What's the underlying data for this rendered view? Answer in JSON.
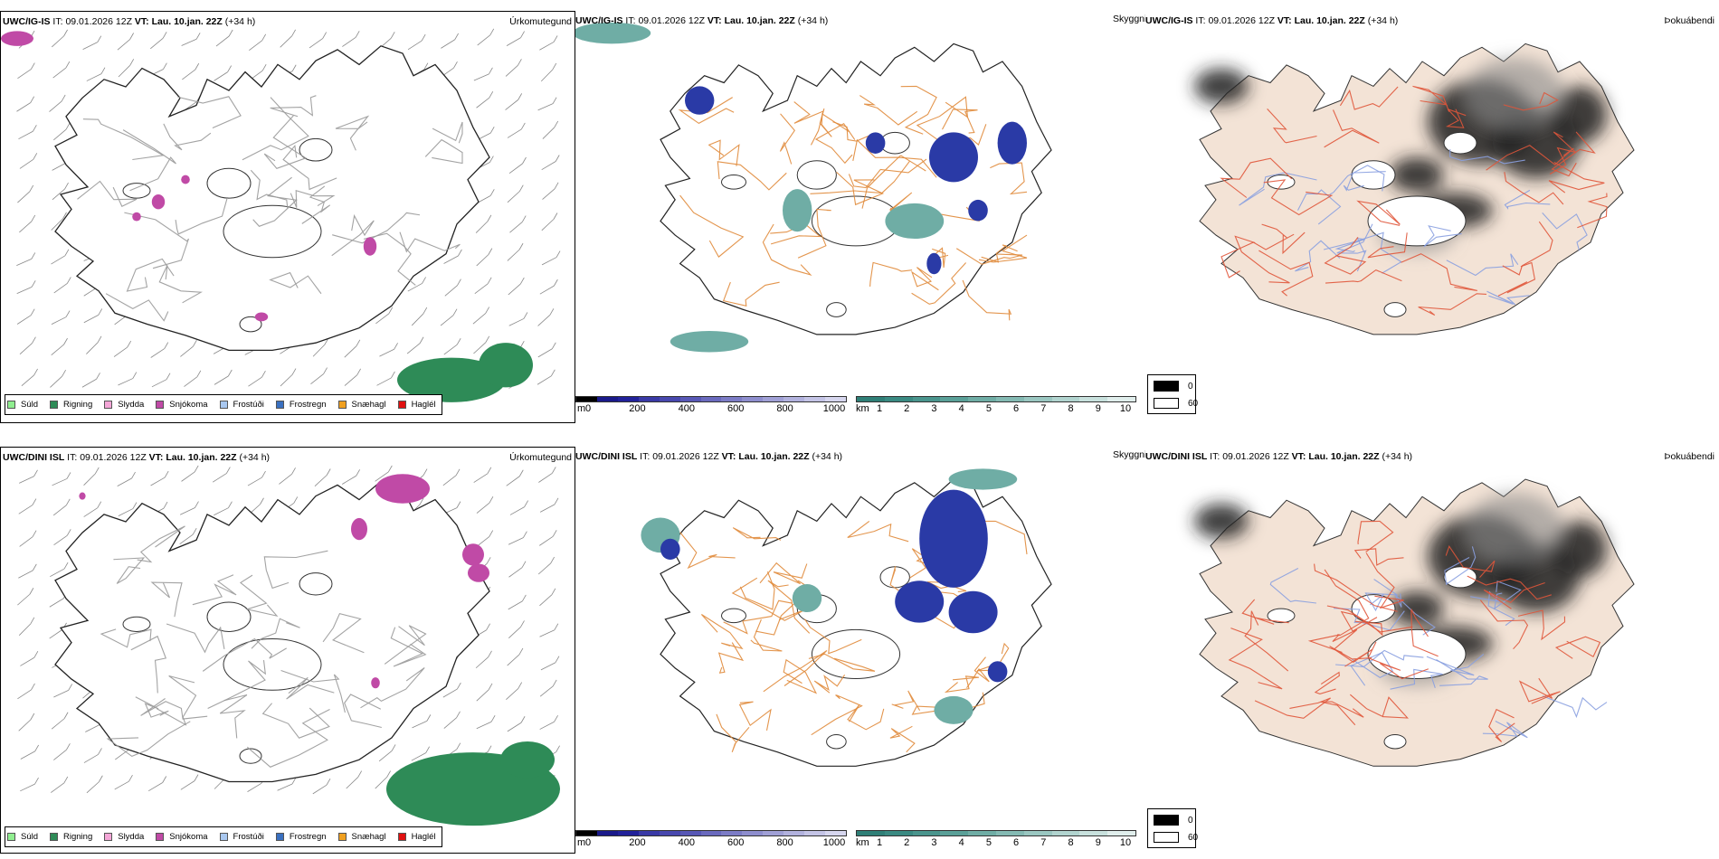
{
  "rows": [
    {
      "model": "UWC/IG-IS",
      "it_label": "IT:",
      "it_value": "09.01.2026 12Z",
      "vt_label": "VT:",
      "vt_value": "Lau. 10.jan. 22Z",
      "lead": "(+34 h)"
    },
    {
      "model": "UWC/DINI ISL",
      "it_label": "IT:",
      "it_value": "09.01.2026 12Z",
      "vt_label": "VT:",
      "vt_value": "Lau. 10.jan. 22Z",
      "lead": "(+34 h)"
    }
  ],
  "panel_labels": {
    "precip": "Úrkomutegund",
    "visibility": "Skyggni",
    "fog": "Þokuábendi"
  },
  "precip_legend": [
    {
      "label": "Súld",
      "color": "#90ee90"
    },
    {
      "label": "Rigning",
      "color": "#2e8b57"
    },
    {
      "label": "Slydda",
      "color": "#f4a6d7"
    },
    {
      "label": "Snjókoma",
      "color": "#c04aa6"
    },
    {
      "label": "Frostúði",
      "color": "#a9c8f0"
    },
    {
      "label": "Frostregn",
      "color": "#3a70c0"
    },
    {
      "label": "Snæhagl",
      "color": "#f0a020"
    },
    {
      "label": "Haglél",
      "color": "#e01010"
    }
  ],
  "elevation_scale": {
    "unit": "m",
    "ticks": [
      "0",
      "200",
      "400",
      "600",
      "800",
      "1000"
    ],
    "colors": [
      "#000000",
      "#1a1a8a",
      "#22229a",
      "#3a3aa6",
      "#4848ae",
      "#5858b6",
      "#6a6abe",
      "#7c7cc6",
      "#8e8ece",
      "#a0a0d6",
      "#b2b2de",
      "#c4c4e6",
      "#d6d6ee"
    ]
  },
  "cloud_scale": {
    "unit": "km",
    "ticks": [
      "1",
      "2",
      "3",
      "4",
      "5",
      "6",
      "7",
      "8",
      "9",
      "10"
    ],
    "colors": [
      "#2f7f77",
      "#3a8a82",
      "#4a958d",
      "#5aa098",
      "#6fada5",
      "#84bab3",
      "#9ac7c1",
      "#b1d4cf",
      "#c8e1dd",
      "#e0eeec"
    ]
  },
  "fog_legend": [
    {
      "label": "0",
      "color": "#000000"
    },
    {
      "label": "60",
      "color": "#ffffff"
    }
  ],
  "colors": {
    "snow": "#c04aa6",
    "rain": "#2e8b57",
    "road": "#e08a3a",
    "fog_land": "#f3e3d6",
    "fog_road": "#e0553a",
    "river": "#8aa0e0"
  }
}
